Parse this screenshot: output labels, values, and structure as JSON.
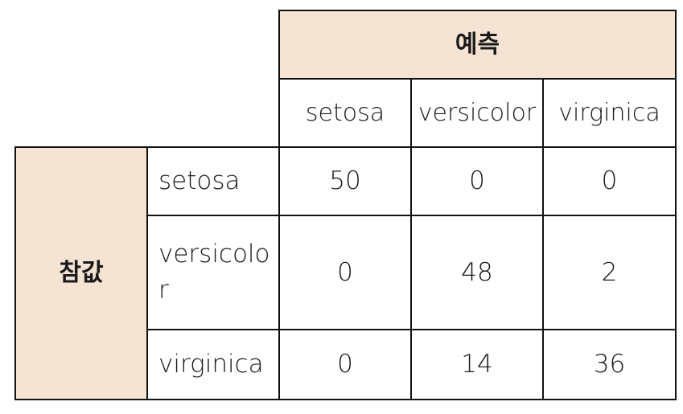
{
  "table": {
    "predicted_header": "예측",
    "actual_header": "참값",
    "columns": [
      "setosa",
      "versicolor",
      "virginica"
    ],
    "rows": [
      {
        "label": "setosa",
        "values": [
          "50",
          "0",
          "0"
        ]
      },
      {
        "label": "versicolor",
        "values": [
          "0",
          "48",
          "2"
        ]
      },
      {
        "label": "virginica",
        "values": [
          "0",
          "14",
          "36"
        ]
      }
    ],
    "colors": {
      "header_fill": "#f5e4d3",
      "border": "#111111"
    }
  }
}
